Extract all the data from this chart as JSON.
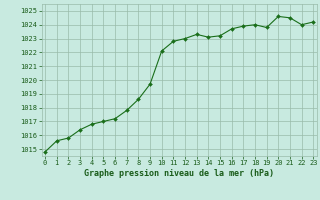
{
  "x": [
    0,
    1,
    2,
    3,
    4,
    5,
    6,
    7,
    8,
    9,
    10,
    11,
    12,
    13,
    14,
    15,
    16,
    17,
    18,
    19,
    20,
    21,
    22,
    23
  ],
  "y": [
    1014.8,
    1015.6,
    1015.8,
    1016.4,
    1016.8,
    1017.0,
    1017.2,
    1017.8,
    1018.6,
    1019.7,
    1022.1,
    1022.8,
    1023.0,
    1023.3,
    1023.1,
    1023.2,
    1023.7,
    1023.9,
    1024.0,
    1023.8,
    1024.6,
    1024.5,
    1024.0,
    1024.2
  ],
  "line_color": "#1a6e1a",
  "marker": "D",
  "marker_size": 2.0,
  "bg_color": "#c8eae0",
  "grid_color": "#99bbaa",
  "xlabel": "Graphe pression niveau de la mer (hPa)",
  "xlabel_color": "#1a5c1a",
  "tick_color": "#1a5c1a",
  "ylabel_ticks": [
    1015,
    1016,
    1017,
    1018,
    1019,
    1020,
    1021,
    1022,
    1023,
    1024,
    1025
  ],
  "xlim": [
    -0.3,
    23.3
  ],
  "ylim": [
    1014.5,
    1025.5
  ],
  "xticks": [
    0,
    1,
    2,
    3,
    4,
    5,
    6,
    7,
    8,
    9,
    10,
    11,
    12,
    13,
    14,
    15,
    16,
    17,
    18,
    19,
    20,
    21,
    22,
    23
  ],
  "tick_fontsize": 5.0,
  "xlabel_fontsize": 6.0,
  "linewidth": 0.8
}
